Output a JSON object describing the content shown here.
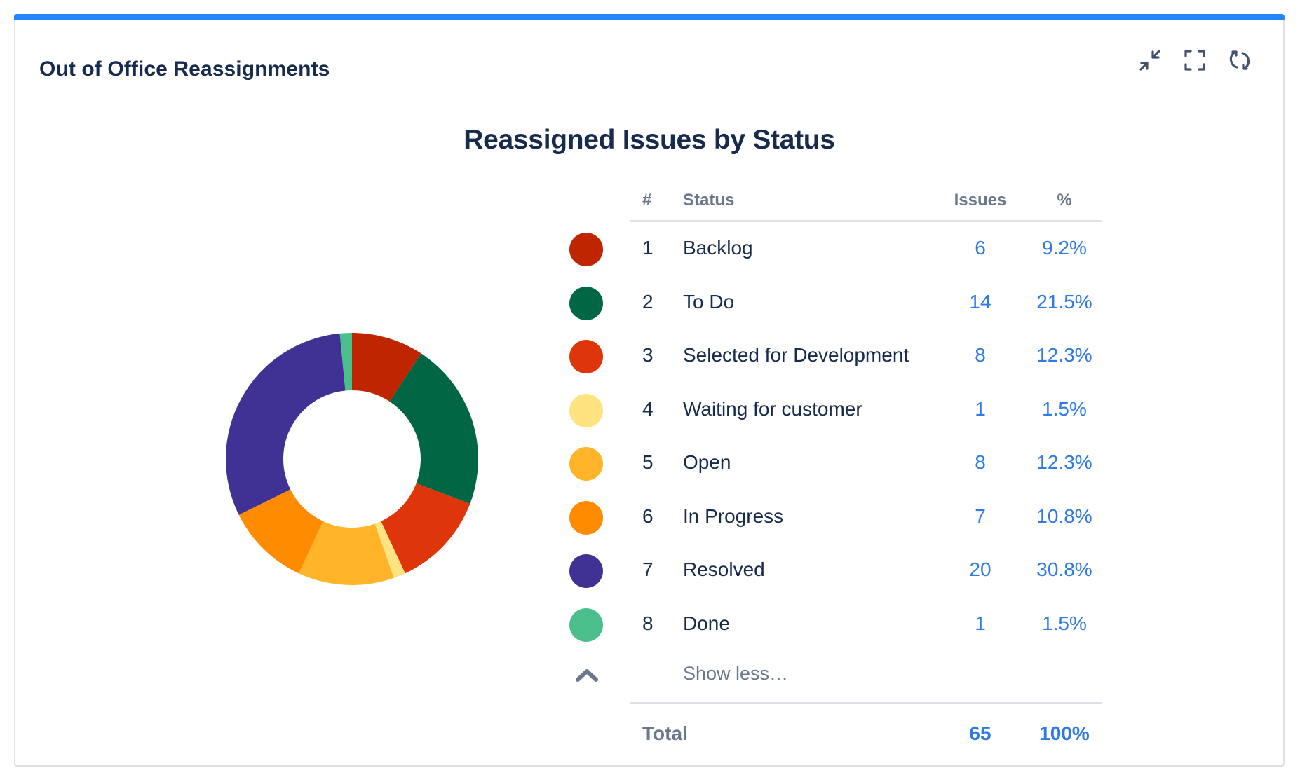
{
  "gadget": {
    "title": "Out of Office Reassignments",
    "accent_color": "#2684ff",
    "toolbar": [
      {
        "icon": "minimize-icon"
      },
      {
        "icon": "fullscreen-icon"
      },
      {
        "icon": "refresh-icon"
      }
    ]
  },
  "chart_data": {
    "type": "pie",
    "variant": "donut",
    "title": "Reassigned Issues by Status",
    "columns": [
      "#",
      "Status",
      "Issues",
      "%"
    ],
    "slices": [
      {
        "index": "1",
        "label": "Backlog",
        "value": 6,
        "percent": "9.2%",
        "color": "#bf2600"
      },
      {
        "index": "2",
        "label": "To Do",
        "value": 14,
        "percent": "21.5%",
        "color": "#006644"
      },
      {
        "index": "3",
        "label": "Selected for Development",
        "value": 8,
        "percent": "12.3%",
        "color": "#de350b"
      },
      {
        "index": "4",
        "label": "Waiting for customer",
        "value": 1,
        "percent": "1.5%",
        "color": "#ffe380"
      },
      {
        "index": "5",
        "label": "Open",
        "value": 8,
        "percent": "12.3%",
        "color": "#ffb42a"
      },
      {
        "index": "6",
        "label": "In Progress",
        "value": 7,
        "percent": "10.8%",
        "color": "#ff8b00"
      },
      {
        "index": "7",
        "label": "Resolved",
        "value": 20,
        "percent": "30.8%",
        "color": "#403294"
      },
      {
        "index": "8",
        "label": "Done",
        "value": 1,
        "percent": "1.5%",
        "color": "#4bbf8b"
      }
    ],
    "show_less_label": "Show less…",
    "total": {
      "label": "Total",
      "value": "65",
      "percent": "100%"
    }
  }
}
